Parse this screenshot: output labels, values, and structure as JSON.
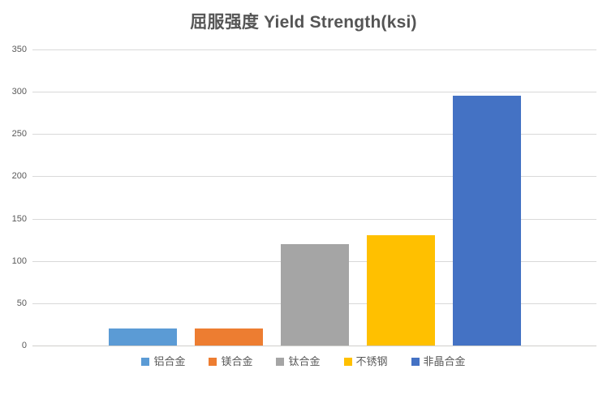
{
  "chart_data": {
    "type": "bar",
    "title": "屈服强度 Yield Strength(ksi)",
    "categories": [
      "铝合金",
      "镁合金",
      "钛合金",
      "不锈钢",
      "非晶合金"
    ],
    "series": [
      {
        "name": "铝合金",
        "value": 20,
        "color": "#5B9BD5"
      },
      {
        "name": "镁合金",
        "value": 20,
        "color": "#ED7D31"
      },
      {
        "name": "钛合金",
        "value": 120,
        "color": "#A5A5A5"
      },
      {
        "name": "不锈钢",
        "value": 130,
        "color": "#FFC000"
      },
      {
        "name": "非晶合金",
        "value": 295,
        "color": "#4472C4"
      }
    ],
    "values": [
      20,
      20,
      120,
      130,
      295
    ],
    "yticks": [
      0,
      50,
      100,
      150,
      200,
      250,
      300,
      350
    ],
    "ylim": [
      0,
      350
    ],
    "xlabel": "",
    "ylabel": "",
    "grid": true,
    "legend_position": "bottom"
  },
  "colors": {
    "title_text": "#555555",
    "tick_text": "#595959",
    "legend_text": "#595959",
    "gridline": "#D9D9D9",
    "axis_line": "#CFCECB",
    "background": "#FFFFFF"
  }
}
